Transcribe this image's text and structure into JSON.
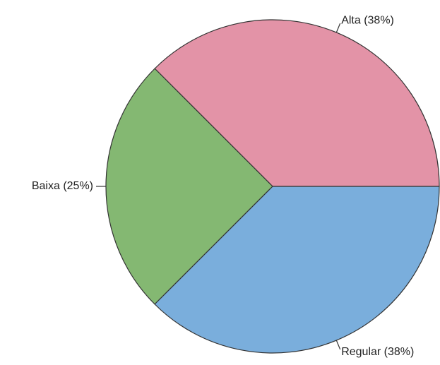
{
  "chart_data": {
    "type": "pie",
    "title": "",
    "labels": [
      "Alta (38%)",
      "Baixa (25%)",
      "Regular (38%)"
    ],
    "values": [
      37.5,
      25,
      37.5
    ],
    "colors": [
      "#e393a7",
      "#84b872",
      "#7aaedc"
    ],
    "start_angle_deg": 0,
    "direction": "counterclockwise",
    "legend": "none"
  }
}
